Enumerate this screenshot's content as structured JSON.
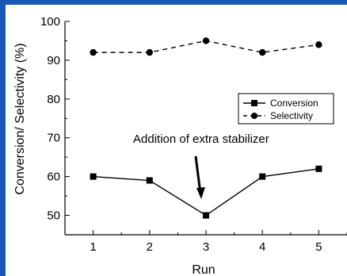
{
  "chart_data": {
    "type": "line",
    "x": [
      1,
      2,
      3,
      4,
      5
    ],
    "x_ticks": [
      "1",
      "2",
      "3",
      "4",
      "5"
    ],
    "y_ticks": [
      "50",
      "60",
      "70",
      "80",
      "90",
      "100"
    ],
    "xlim": [
      0.5,
      5.5
    ],
    "ylim": [
      45,
      100
    ],
    "xlabel": "Run",
    "ylabel": "Conversion/ Selectivity (%)",
    "grid": false,
    "legend_position": "right",
    "series": [
      {
        "name": "Conversion",
        "marker": "square",
        "line": "solid",
        "values": [
          60,
          59,
          50,
          60,
          62
        ]
      },
      {
        "name": "Selectivity",
        "marker": "circle",
        "line": "dashed",
        "values": [
          92,
          92,
          95,
          92,
          94
        ]
      }
    ],
    "annotation": {
      "text": "Addition of extra stabilizer",
      "x": 3,
      "y": 50
    }
  },
  "colors": {
    "frame": "#1a58b5",
    "ink": "#000000"
  }
}
